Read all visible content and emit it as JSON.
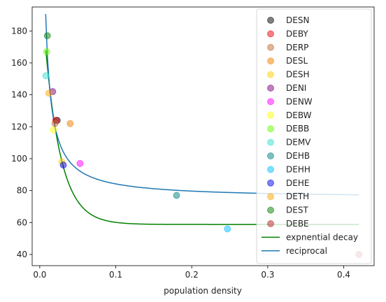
{
  "chart_data": {
    "type": "scatter",
    "title": "",
    "xlabel": "population density",
    "ylabel": "",
    "xlim": [
      -0.01,
      0.44
    ],
    "ylim": [
      33,
      195
    ],
    "xticks": [
      0.0,
      0.1,
      0.2,
      0.3,
      0.4
    ],
    "xtick_labels": [
      "0.0",
      "0.1",
      "0.2",
      "0.3",
      "0.4"
    ],
    "yticks": [
      40,
      60,
      80,
      100,
      120,
      140,
      160,
      180
    ],
    "ytick_labels": [
      "40",
      "60",
      "80",
      "100",
      "120",
      "140",
      "160",
      "180"
    ],
    "grid": false,
    "legend_position": "top-right",
    "points": [
      {
        "name": "DESN",
        "color": "#000000",
        "x": 0.023,
        "y": 124
      },
      {
        "name": "DEBY",
        "color": "#e8000b",
        "x": 0.021,
        "y": 124
      },
      {
        "name": "DERP",
        "color": "#c46a2f",
        "x": 0.02,
        "y": 122
      },
      {
        "name": "DESL",
        "color": "#f07f00",
        "x": 0.04,
        "y": 122
      },
      {
        "name": "DESH",
        "color": "#ffd000",
        "x": 0.029,
        "y": 98
      },
      {
        "name": "DENI",
        "color": "#800080",
        "x": 0.017,
        "y": 142
      },
      {
        "name": "DENW",
        "color": "#ff00ff",
        "x": 0.053,
        "y": 97
      },
      {
        "name": "DEBW",
        "color": "#ffff00",
        "x": 0.018,
        "y": 118
      },
      {
        "name": "DEBB",
        "color": "#66ff00",
        "x": 0.009,
        "y": 167
      },
      {
        "name": "DEMV",
        "color": "#33e0d0",
        "x": 0.008,
        "y": 152
      },
      {
        "name": "DEHB",
        "color": "#008080",
        "x": 0.18,
        "y": 77
      },
      {
        "name": "DEHH",
        "color": "#00bfff",
        "x": 0.247,
        "y": 56
      },
      {
        "name": "DEHE",
        "color": "#0000ee",
        "x": 0.031,
        "y": 96
      },
      {
        "name": "DETH",
        "color": "#ffa500",
        "x": 0.012,
        "y": 141
      },
      {
        "name": "DEST",
        "color": "#008000",
        "x": 0.01,
        "y": 177
      },
      {
        "name": "DEBE",
        "color": "#b22222",
        "x": 0.42,
        "y": 40
      }
    ],
    "lines": [
      {
        "name": "expnential decay",
        "color": "#008000",
        "model": "exponential",
        "a": 160,
        "b": 48,
        "c": 58.8,
        "x_range": [
          0.008,
          0.42
        ]
      },
      {
        "name": "reciprocal",
        "color": "#1f77b4",
        "model": "reciprocal",
        "a": 0.9,
        "c": 75.2,
        "x_range": [
          0.0078,
          0.42
        ]
      }
    ]
  }
}
